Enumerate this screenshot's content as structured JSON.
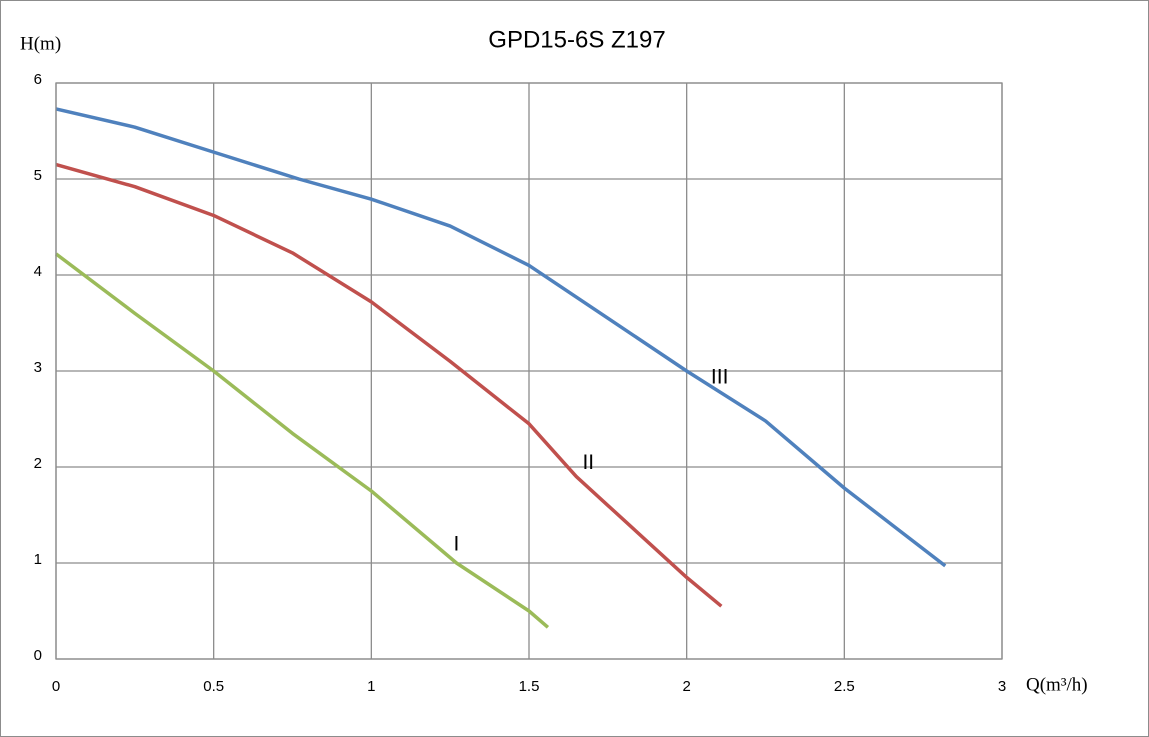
{
  "chart_data": {
    "type": "line",
    "title": "GPD15-6S  Z197",
    "y_label": "H(m)",
    "x_label": "Q(m³/h)",
    "xlim": [
      0,
      3
    ],
    "ylim": [
      0,
      6
    ],
    "xticks": [
      0,
      0.5,
      1,
      1.5,
      2,
      2.5,
      3
    ],
    "yticks": [
      0,
      1,
      2,
      3,
      4,
      5,
      6
    ],
    "grid": true,
    "series": [
      {
        "name": "I",
        "color": "#9bbb59",
        "x": [
          0,
          0.25,
          0.5,
          0.75,
          1.0,
          1.27,
          1.5,
          1.56
        ],
        "values": [
          4.22,
          3.6,
          3.0,
          2.35,
          1.75,
          1.0,
          0.5,
          0.33
        ]
      },
      {
        "name": "II",
        "color": "#c0504d",
        "x": [
          0,
          0.25,
          0.5,
          0.75,
          1.0,
          1.25,
          1.5,
          1.65,
          1.75,
          2.0,
          2.11
        ],
        "values": [
          5.15,
          4.92,
          4.62,
          4.23,
          3.72,
          3.1,
          2.45,
          1.9,
          1.6,
          0.85,
          0.55
        ]
      },
      {
        "name": "III",
        "color": "#4f81bd",
        "x": [
          0,
          0.25,
          0.5,
          0.77,
          1.0,
          1.25,
          1.5,
          1.75,
          2.0,
          2.25,
          2.5,
          2.82
        ],
        "values": [
          5.73,
          5.54,
          5.28,
          5.0,
          4.79,
          4.51,
          4.1,
          3.55,
          3.0,
          2.48,
          1.78,
          0.97
        ]
      }
    ]
  }
}
